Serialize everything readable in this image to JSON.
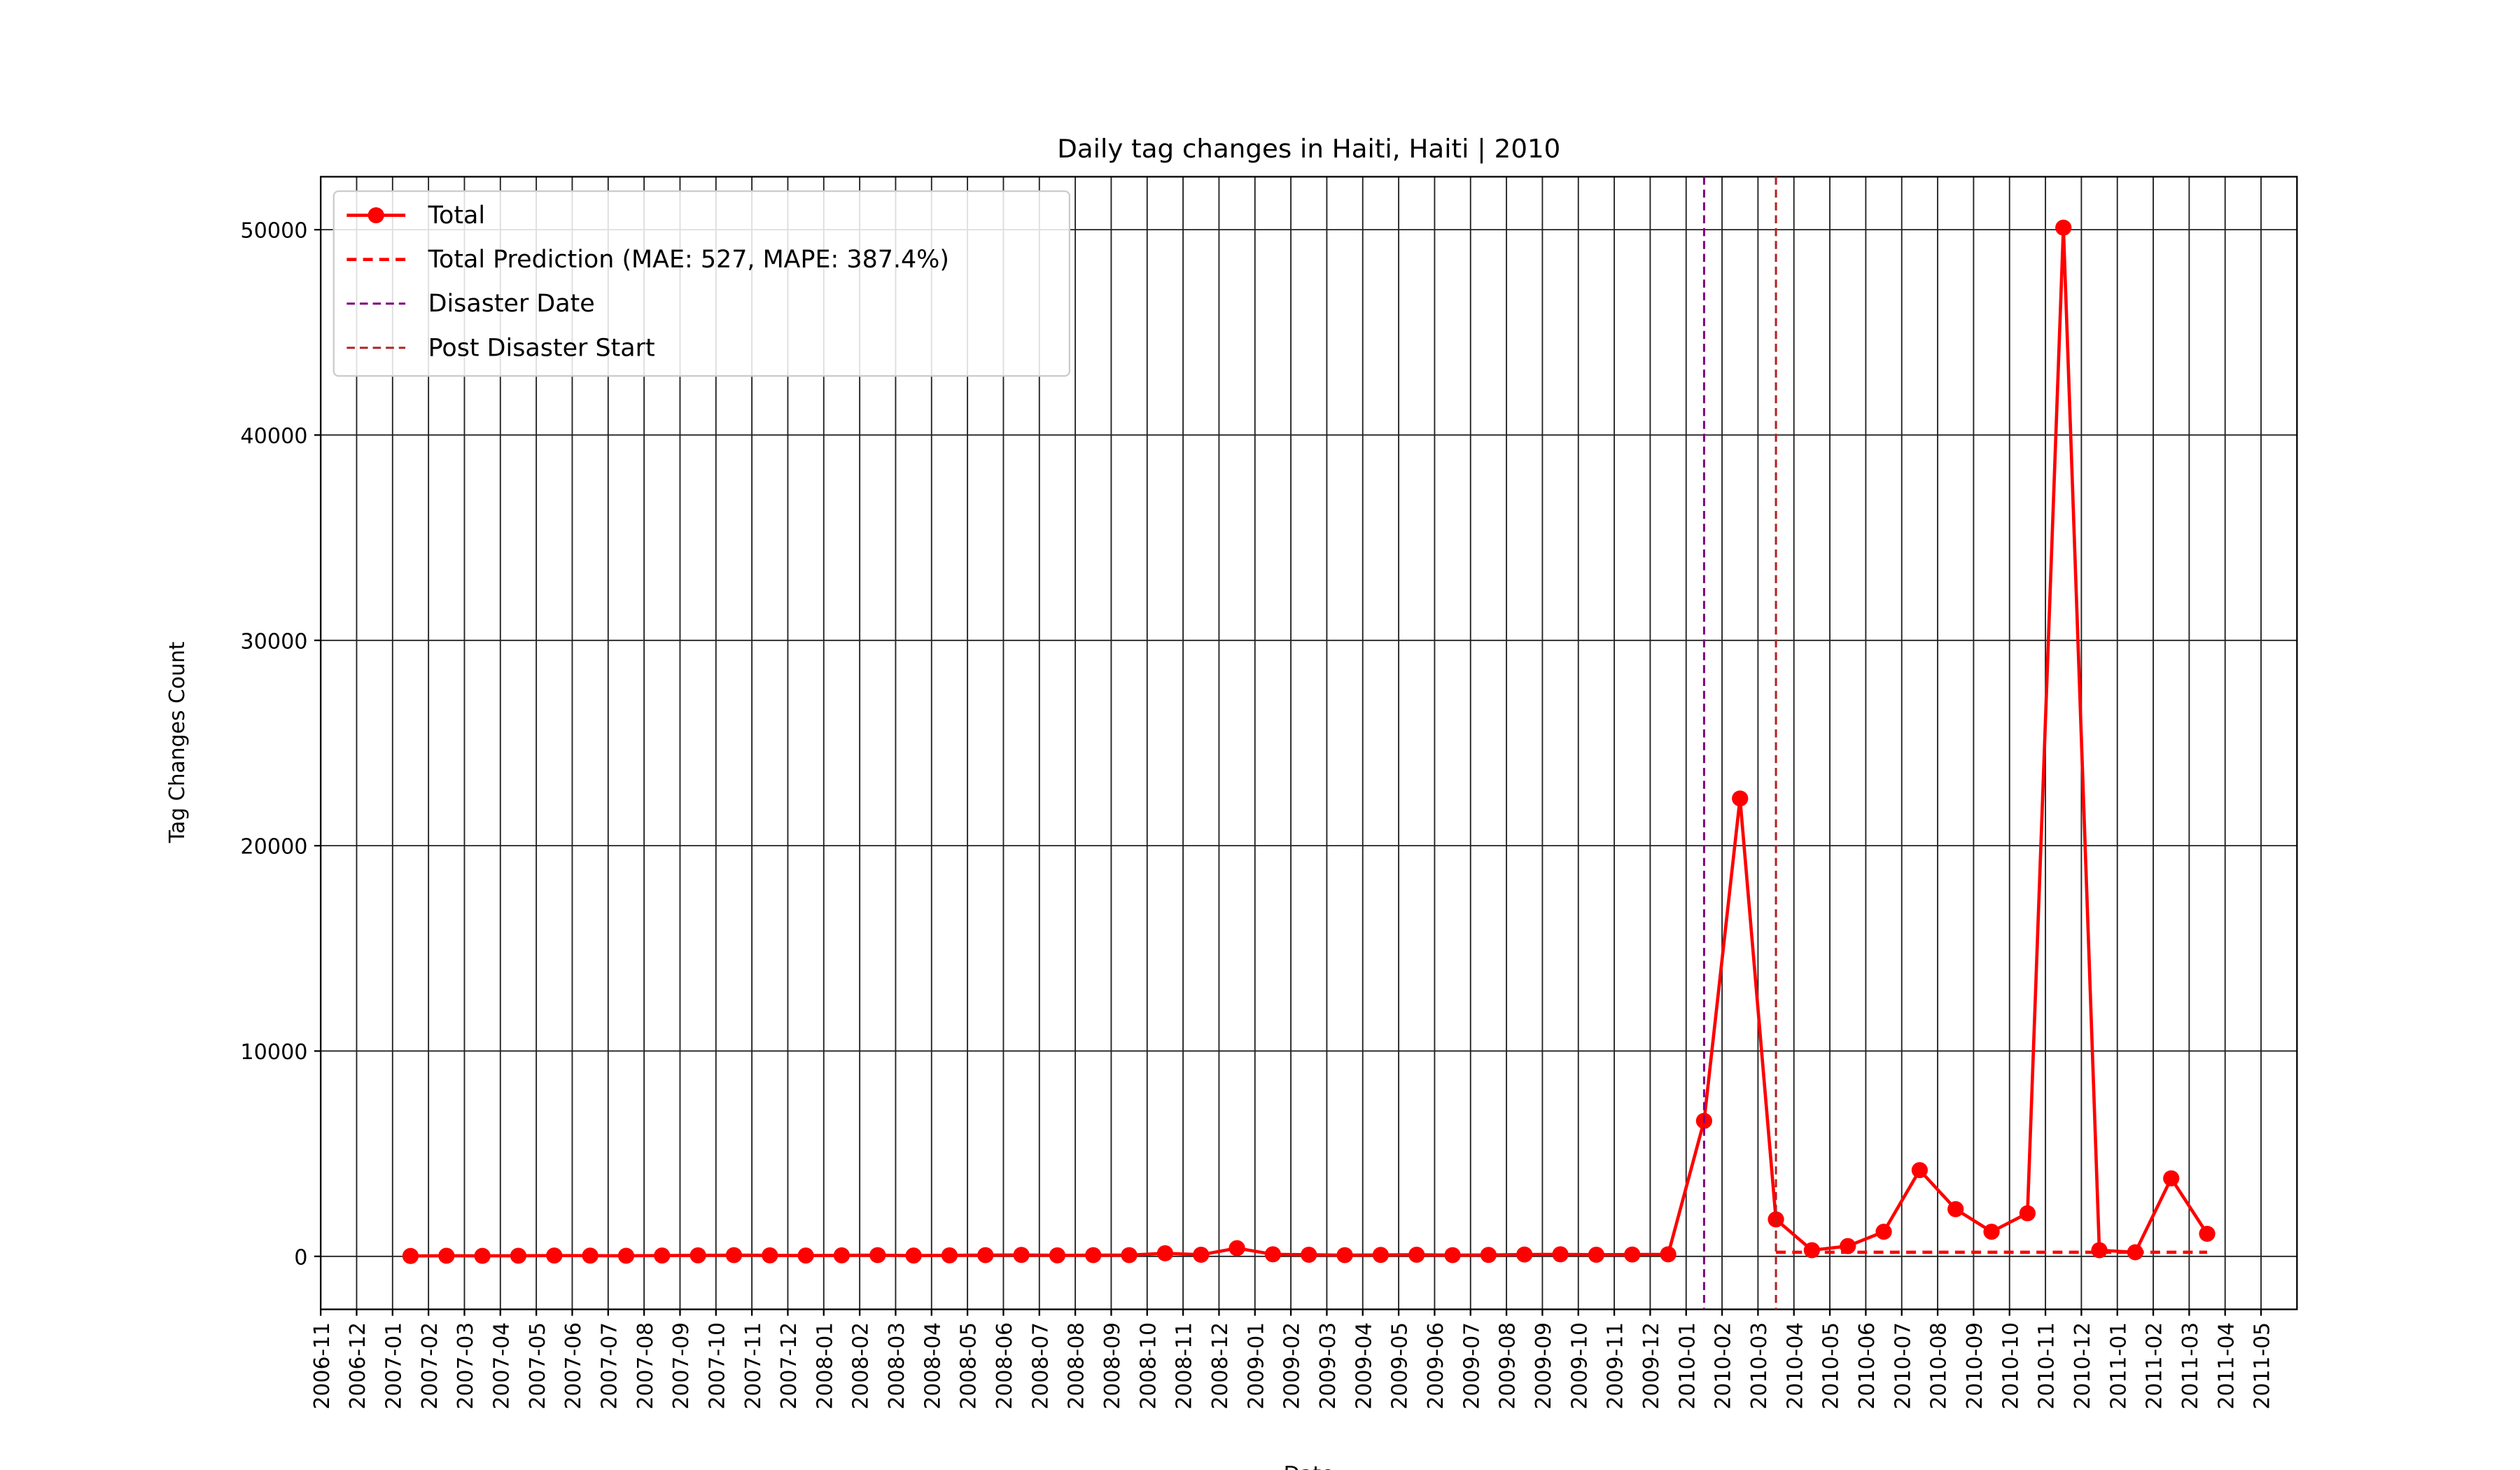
{
  "chart_data": {
    "type": "line",
    "title": "Daily tag changes in Haiti, Haiti | 2010",
    "x_label": "Date",
    "y_label": "Tag Changes Count",
    "x": [
      "2007-01",
      "2007-02",
      "2007-03",
      "2007-04",
      "2007-05",
      "2007-06",
      "2007-07",
      "2007-08",
      "2007-09",
      "2007-10",
      "2007-11",
      "2007-12",
      "2008-01",
      "2008-02",
      "2008-03",
      "2008-04",
      "2008-05",
      "2008-06",
      "2008-07",
      "2008-08",
      "2008-09",
      "2008-10",
      "2008-11",
      "2008-12",
      "2009-01",
      "2009-02",
      "2009-03",
      "2009-04",
      "2009-05",
      "2009-06",
      "2009-07",
      "2009-08",
      "2009-09",
      "2009-10",
      "2009-11",
      "2009-12",
      "2010-01",
      "2010-02",
      "2010-03",
      "2010-04",
      "2010-05",
      "2010-06",
      "2010-07",
      "2010-08",
      "2010-09",
      "2010-10",
      "2010-11",
      "2010-12",
      "2011-01",
      "2011-02",
      "2011-03"
    ],
    "series": [
      {
        "name": "Total",
        "color": "#ff0000",
        "style": "solid-marker",
        "values": [
          20,
          30,
          25,
          30,
          40,
          35,
          30,
          40,
          50,
          60,
          50,
          40,
          50,
          60,
          40,
          50,
          60,
          70,
          50,
          60,
          60,
          150,
          80,
          400,
          100,
          80,
          60,
          70,
          80,
          60,
          70,
          90,
          100,
          80,
          90,
          100,
          6600,
          22300,
          1800,
          300,
          500,
          1200,
          4200,
          2300,
          1200,
          2100,
          50100,
          300,
          200,
          3800,
          1100
        ]
      },
      {
        "name": "Total Prediction (MAE: 527, MAPE: 387.4%)",
        "color": "#ff0000",
        "style": "dashed",
        "values": [
          null,
          null,
          null,
          null,
          null,
          null,
          null,
          null,
          null,
          null,
          null,
          null,
          null,
          null,
          null,
          null,
          null,
          null,
          null,
          null,
          null,
          null,
          null,
          null,
          null,
          null,
          null,
          null,
          null,
          null,
          null,
          null,
          null,
          null,
          null,
          null,
          null,
          null,
          200,
          200,
          200,
          200,
          200,
          200,
          200,
          200,
          200,
          200,
          200,
          200,
          200
        ]
      }
    ],
    "vlines": [
      {
        "name": "Disaster Date",
        "x": "2010-01",
        "color": "#800080"
      },
      {
        "name": "Post Disaster Start",
        "x": "2010-03",
        "color": "#b22222"
      }
    ],
    "xlim": [
      "2006-11",
      "2011-06"
    ],
    "xticks": [
      "2006-11",
      "2006-12",
      "2007-01",
      "2007-02",
      "2007-03",
      "2007-04",
      "2007-05",
      "2007-06",
      "2007-07",
      "2007-08",
      "2007-09",
      "2007-10",
      "2007-11",
      "2007-12",
      "2008-01",
      "2008-02",
      "2008-03",
      "2008-04",
      "2008-05",
      "2008-06",
      "2008-07",
      "2008-08",
      "2008-09",
      "2008-10",
      "2008-11",
      "2008-12",
      "2009-01",
      "2009-02",
      "2009-03",
      "2009-04",
      "2009-05",
      "2009-06",
      "2009-07",
      "2009-08",
      "2009-09",
      "2009-10",
      "2009-11",
      "2009-12",
      "2010-01",
      "2010-02",
      "2010-03",
      "2010-04",
      "2010-05",
      "2010-06",
      "2010-07",
      "2010-08",
      "2010-09",
      "2010-10",
      "2010-11",
      "2010-12",
      "2011-01",
      "2011-02",
      "2011-03",
      "2011-04",
      "2011-05"
    ],
    "ylim": [
      -2580,
      52580
    ],
    "yticks": [
      0,
      10000,
      20000,
      30000,
      40000,
      50000
    ],
    "grid": true,
    "legend": "upper left"
  }
}
